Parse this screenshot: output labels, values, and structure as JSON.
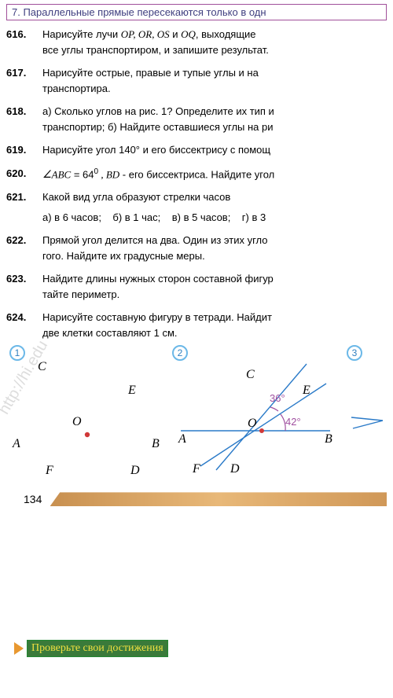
{
  "theorem": "7. Параллельные прямые пересекаются только в одн",
  "p616": {
    "n": "616.",
    "t1": "Нарисуйте лучи ",
    "rays": "OP, OR, OS",
    "and": " и ",
    "ray4": "OQ",
    "t2": ", выходящие",
    "t3": "все углы транспортиром, и запишите результат."
  },
  "p617": {
    "n": "617.",
    "t1": "Нарисуйте острые, правые и тупые углы и на",
    "t2": "транспортира."
  },
  "p618": {
    "n": "618.",
    "t1": "а) Сколько углов на рис. 1? Определите их тип и",
    "t2": "транспортир; б) Найдите оставшиеся углы на ри"
  },
  "p619": {
    "n": "619.",
    "t1": "Нарисуйте угол 140° и его биссектрису с помощ"
  },
  "p620": {
    "n": "620.",
    "abc": "ABC",
    "eq": " = 64",
    "deg": "0",
    "bd": " , BD",
    "t1": " - его биссектриса. Найдите угол"
  },
  "p621": {
    "n": "621.",
    "t1": "Какой вид угла образуют стрелки часов",
    "a": "а) в 6 часов;",
    "b": "б) в 1 час;",
    "c": "в) в 5 часов;",
    "d": "г) в 3"
  },
  "p622": {
    "n": "622.",
    "t1": "Прямой угол делится на два. Один из этих угло",
    "t2": "гого. Найдите их градусные меры."
  },
  "p623": {
    "n": "623.",
    "t1": "Найдите длины нужных сторон составной фигур",
    "t2": "тайте периметр."
  },
  "p624": {
    "n": "624.",
    "t1": "Нарисуйте составную фигуру в тетради. Найдит",
    "t2": "две клетки составляют 1 см."
  },
  "fig": {
    "n1": "1",
    "n2": "2",
    "n3": "3",
    "labels": {
      "A": "A",
      "B": "B",
      "C": "C",
      "D": "D",
      "E": "E",
      "F": "F",
      "O": "O"
    },
    "ang36": "36°",
    "ang42": "42°",
    "lineColor": "#2a7ac8",
    "dotColor": "#d03838",
    "arcColor": "#a050a0",
    "textColor": "#000",
    "angColor": "#a050a0"
  },
  "pagenum": "134",
  "watermark": "http://hi.edu",
  "footer": "Проверьте свои достижения"
}
